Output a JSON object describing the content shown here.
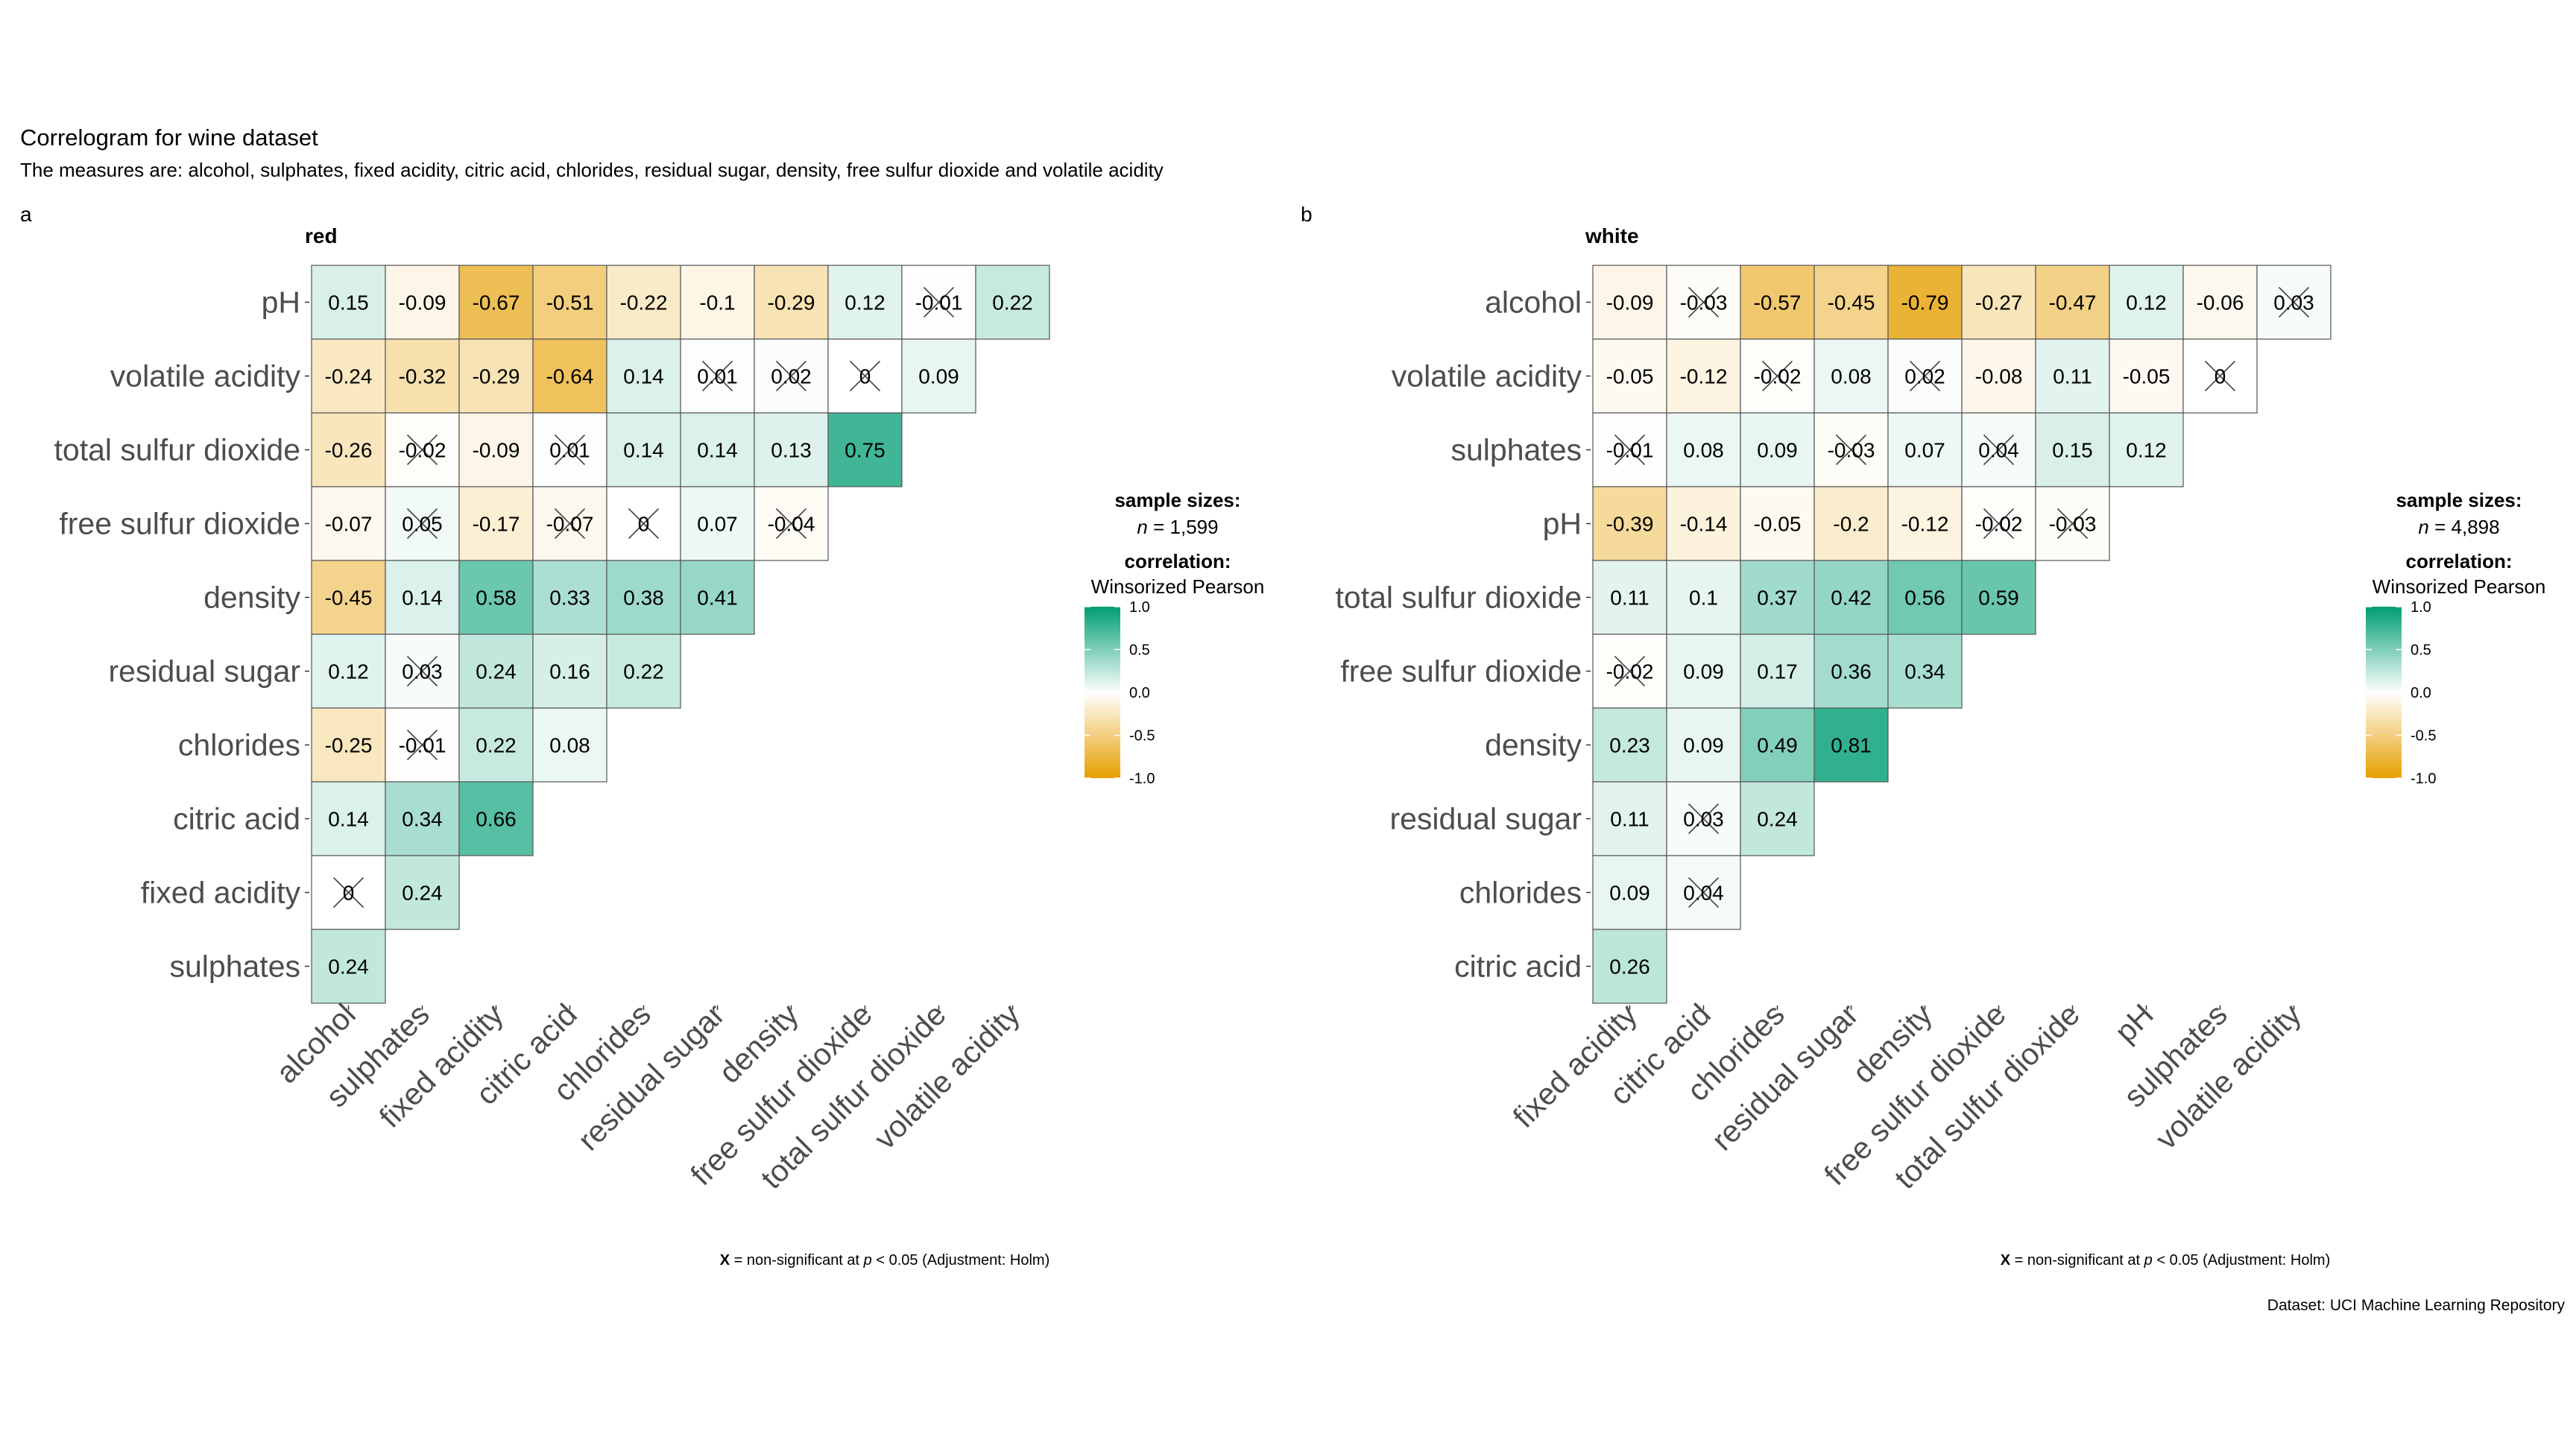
{
  "title": "Correlogram for wine dataset",
  "subtitle": "The measures are: alcohol, sulphates, fixed acidity, citric acid, chlorides, residual sugar, density, free sulfur dioxide and volatile acidity",
  "caption": "Dataset: UCI Machine Learning Repository",
  "colors": {
    "negative": "#E69F00",
    "zero": "#FFFFFF",
    "positive": "#009E73",
    "grid": "#555555"
  },
  "chart_data": [
    {
      "type": "heatmap",
      "tag": "a",
      "title": "red",
      "x_labels": [
        "alcohol",
        "sulphates",
        "fixed acidity",
        "citric acid",
        "chlorides",
        "residual sugar",
        "density",
        "free sulfur dioxide",
        "total sulfur dioxide",
        "volatile acidity"
      ],
      "y_labels": [
        "pH",
        "volatile acidity",
        "total sulfur dioxide",
        "free sulfur dioxide",
        "density",
        "residual sugar",
        "chlorides",
        "citric acid",
        "fixed acidity",
        "sulphates"
      ],
      "values": [
        [
          0.15,
          -0.09,
          -0.67,
          -0.51,
          -0.22,
          -0.1,
          -0.29,
          0.12,
          -0.01,
          0.22
        ],
        [
          -0.24,
          -0.32,
          -0.29,
          -0.64,
          0.14,
          0.01,
          0.02,
          0,
          0.09
        ],
        [
          -0.26,
          -0.02,
          -0.09,
          0.01,
          0.14,
          0.14,
          0.13,
          0.75
        ],
        [
          -0.07,
          0.05,
          -0.17,
          -0.07,
          0,
          0.07,
          -0.04
        ],
        [
          -0.45,
          0.14,
          0.58,
          0.33,
          0.38,
          0.41
        ],
        [
          0.12,
          0.03,
          0.24,
          0.16,
          0.22
        ],
        [
          -0.25,
          -0.01,
          0.22,
          0.08
        ],
        [
          0.14,
          0.34,
          0.66
        ],
        [
          0,
          0.24
        ],
        [
          0.24
        ]
      ],
      "nonsignificant": [
        [
          0,
          8
        ],
        [
          1,
          5
        ],
        [
          1,
          6
        ],
        [
          1,
          7
        ],
        [
          2,
          1
        ],
        [
          2,
          3
        ],
        [
          3,
          1
        ],
        [
          3,
          3
        ],
        [
          3,
          4
        ],
        [
          3,
          6
        ],
        [
          5,
          1
        ],
        [
          6,
          1
        ],
        [
          8,
          0
        ]
      ],
      "legend": {
        "heading_sizes": "sample sizes:",
        "n_label": "n",
        "n_value": "= 1,599",
        "heading_corr": "correlation:",
        "method": "Winsorized Pearson",
        "ticks": [
          "1.0",
          "0.5",
          "0.0",
          "-0.5",
          "-1.0"
        ],
        "range": [
          -1,
          1
        ]
      },
      "footnote": {
        "symbol": "X",
        "text1": " = non-significant at ",
        "p": "p",
        "text2": " < 0.05 (Adjustment: Holm)"
      }
    },
    {
      "type": "heatmap",
      "tag": "b",
      "title": "white",
      "x_labels": [
        "fixed acidity",
        "citric acid",
        "chlorides",
        "residual sugar",
        "density",
        "free sulfur dioxide",
        "total sulfur dioxide",
        "pH",
        "sulphates",
        "volatile acidity"
      ],
      "y_labels": [
        "alcohol",
        "volatile acidity",
        "sulphates",
        "pH",
        "total sulfur dioxide",
        "free sulfur dioxide",
        "density",
        "residual sugar",
        "chlorides",
        "citric acid"
      ],
      "values": [
        [
          -0.09,
          -0.03,
          -0.57,
          -0.45,
          -0.79,
          -0.27,
          -0.47,
          0.12,
          -0.06,
          0.03
        ],
        [
          -0.05,
          -0.12,
          -0.02,
          0.08,
          0.02,
          -0.08,
          0.11,
          -0.05,
          0
        ],
        [
          -0.01,
          0.08,
          0.09,
          -0.03,
          0.07,
          0.04,
          0.15,
          0.12
        ],
        [
          -0.39,
          -0.14,
          -0.05,
          -0.2,
          -0.12,
          -0.02,
          -0.03
        ],
        [
          0.11,
          0.1,
          0.37,
          0.42,
          0.56,
          0.59
        ],
        [
          -0.02,
          0.09,
          0.17,
          0.36,
          0.34
        ],
        [
          0.23,
          0.09,
          0.49,
          0.81
        ],
        [
          0.11,
          0.03,
          0.24
        ],
        [
          0.09,
          0.04
        ],
        [
          0.26
        ]
      ],
      "nonsignificant": [
        [
          0,
          1
        ],
        [
          0,
          9
        ],
        [
          1,
          2
        ],
        [
          1,
          4
        ],
        [
          1,
          8
        ],
        [
          2,
          0
        ],
        [
          2,
          3
        ],
        [
          2,
          5
        ],
        [
          3,
          5
        ],
        [
          3,
          6
        ],
        [
          5,
          0
        ],
        [
          7,
          1
        ],
        [
          8,
          1
        ]
      ],
      "legend": {
        "heading_sizes": "sample sizes:",
        "n_label": "n",
        "n_value": "= 4,898",
        "heading_corr": "correlation:",
        "method": "Winsorized Pearson",
        "ticks": [
          "1.0",
          "0.5",
          "0.0",
          "-0.5",
          "-1.0"
        ],
        "range": [
          -1,
          1
        ]
      },
      "footnote": {
        "symbol": "X",
        "text1": " = non-significant at ",
        "p": "p",
        "text2": " < 0.05 (Adjustment: Holm)"
      }
    }
  ]
}
